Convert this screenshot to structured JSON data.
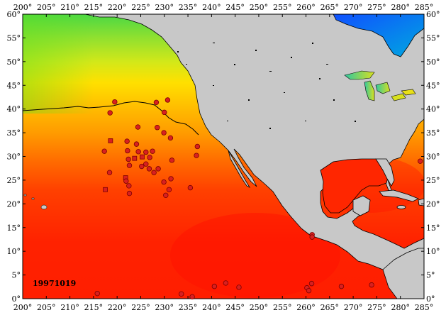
{
  "map": {
    "date_label": "19971019",
    "lon_ticks": [
      "200°",
      "205°",
      "210°",
      "215°",
      "220°",
      "225°",
      "230°",
      "235°",
      "240°",
      "245°",
      "250°",
      "255°",
      "260°",
      "265°",
      "270°",
      "275°",
      "280°",
      "285°"
    ],
    "lat_ticks": [
      "0°",
      "5°",
      "10°",
      "15°",
      "20°",
      "25°",
      "30°",
      "35°",
      "40°",
      "45°",
      "50°",
      "55°",
      "60°"
    ],
    "lon_range": [
      200,
      285
    ],
    "lat_range": [
      0,
      60
    ],
    "colors": {
      "land": "#c8c8c8",
      "warm": "#ff2000",
      "orange": "#ff7a00",
      "yellow": "#ffe000",
      "green": "#60e020",
      "blue": "#0040ff",
      "marker_fill": "#d82020",
      "marker_stroke": "#7a0000"
    },
    "floats": [
      {
        "lon": 218.5,
        "lat": 39.2,
        "shape": "circle"
      },
      {
        "lon": 219.5,
        "lat": 41.5,
        "shape": "circle"
      },
      {
        "lon": 228.3,
        "lat": 41.4,
        "shape": "circle"
      },
      {
        "lon": 230.7,
        "lat": 41.9,
        "shape": "circle"
      },
      {
        "lon": 230.0,
        "lat": 39.3,
        "shape": "circle"
      },
      {
        "lon": 224.4,
        "lat": 36.2,
        "shape": "circle"
      },
      {
        "lon": 228.5,
        "lat": 36.1,
        "shape": "circle"
      },
      {
        "lon": 218.6,
        "lat": 33.3,
        "shape": "square"
      },
      {
        "lon": 229.9,
        "lat": 35.0,
        "shape": "circle"
      },
      {
        "lon": 231.3,
        "lat": 33.9,
        "shape": "circle"
      },
      {
        "lon": 217.3,
        "lat": 31.1,
        "shape": "circle"
      },
      {
        "lon": 222.1,
        "lat": 33.2,
        "shape": "circle"
      },
      {
        "lon": 224.1,
        "lat": 32.6,
        "shape": "circle"
      },
      {
        "lon": 237.0,
        "lat": 32.1,
        "shape": "circle"
      },
      {
        "lon": 222.2,
        "lat": 31.2,
        "shape": "circle"
      },
      {
        "lon": 224.5,
        "lat": 31.0,
        "shape": "circle"
      },
      {
        "lon": 226.1,
        "lat": 30.9,
        "shape": "circle"
      },
      {
        "lon": 227.5,
        "lat": 31.1,
        "shape": "circle"
      },
      {
        "lon": 236.8,
        "lat": 30.2,
        "shape": "circle"
      },
      {
        "lon": 225.3,
        "lat": 29.9,
        "shape": "square"
      },
      {
        "lon": 222.4,
        "lat": 29.4,
        "shape": "circle"
      },
      {
        "lon": 223.7,
        "lat": 29.6,
        "shape": "square"
      },
      {
        "lon": 226.9,
        "lat": 29.8,
        "shape": "circle"
      },
      {
        "lon": 231.6,
        "lat": 29.2,
        "shape": "circle"
      },
      {
        "lon": 226.1,
        "lat": 28.4,
        "shape": "circle"
      },
      {
        "lon": 222.6,
        "lat": 28.1,
        "shape": "circle"
      },
      {
        "lon": 225.2,
        "lat": 27.9,
        "shape": "circle"
      },
      {
        "lon": 226.8,
        "lat": 27.4,
        "shape": "circle"
      },
      {
        "lon": 228.7,
        "lat": 27.4,
        "shape": "circle"
      },
      {
        "lon": 218.4,
        "lat": 26.6,
        "shape": "circle"
      },
      {
        "lon": 227.8,
        "lat": 26.6,
        "shape": "circle"
      },
      {
        "lon": 221.8,
        "lat": 25.5,
        "shape": "square"
      },
      {
        "lon": 231.4,
        "lat": 25.3,
        "shape": "circle"
      },
      {
        "lon": 221.9,
        "lat": 24.8,
        "shape": "circle"
      },
      {
        "lon": 229.9,
        "lat": 24.6,
        "shape": "circle"
      },
      {
        "lon": 222.5,
        "lat": 23.8,
        "shape": "circle"
      },
      {
        "lon": 235.5,
        "lat": 23.4,
        "shape": "circle"
      },
      {
        "lon": 217.5,
        "lat": 23.0,
        "shape": "square"
      },
      {
        "lon": 231.0,
        "lat": 23.0,
        "shape": "circle"
      },
      {
        "lon": 222.6,
        "lat": 22.2,
        "shape": "circle"
      },
      {
        "lon": 230.3,
        "lat": 21.8,
        "shape": "circle"
      },
      {
        "lon": 284.2,
        "lat": 29.0,
        "shape": "circle"
      },
      {
        "lon": 261.3,
        "lat": 13.5,
        "shape": "circle"
      },
      {
        "lon": 261.3,
        "lat": 13.0,
        "shape": "circle"
      },
      {
        "lon": 215.8,
        "lat": 1.1,
        "shape": "circle"
      },
      {
        "lon": 233.6,
        "lat": 1.0,
        "shape": "circle"
      },
      {
        "lon": 235.9,
        "lat": 0.4,
        "shape": "circle"
      },
      {
        "lon": 240.6,
        "lat": 2.6,
        "shape": "circle"
      },
      {
        "lon": 243.0,
        "lat": 3.3,
        "shape": "circle"
      },
      {
        "lon": 245.8,
        "lat": 2.4,
        "shape": "circle"
      },
      {
        "lon": 260.2,
        "lat": 2.3,
        "shape": "circle"
      },
      {
        "lon": 260.6,
        "lat": 1.7,
        "shape": "circle"
      },
      {
        "lon": 261.2,
        "lat": 3.2,
        "shape": "circle"
      },
      {
        "lon": 267.5,
        "lat": 2.6,
        "shape": "circle"
      },
      {
        "lon": 273.9,
        "lat": 2.9,
        "shape": "circle"
      }
    ]
  }
}
